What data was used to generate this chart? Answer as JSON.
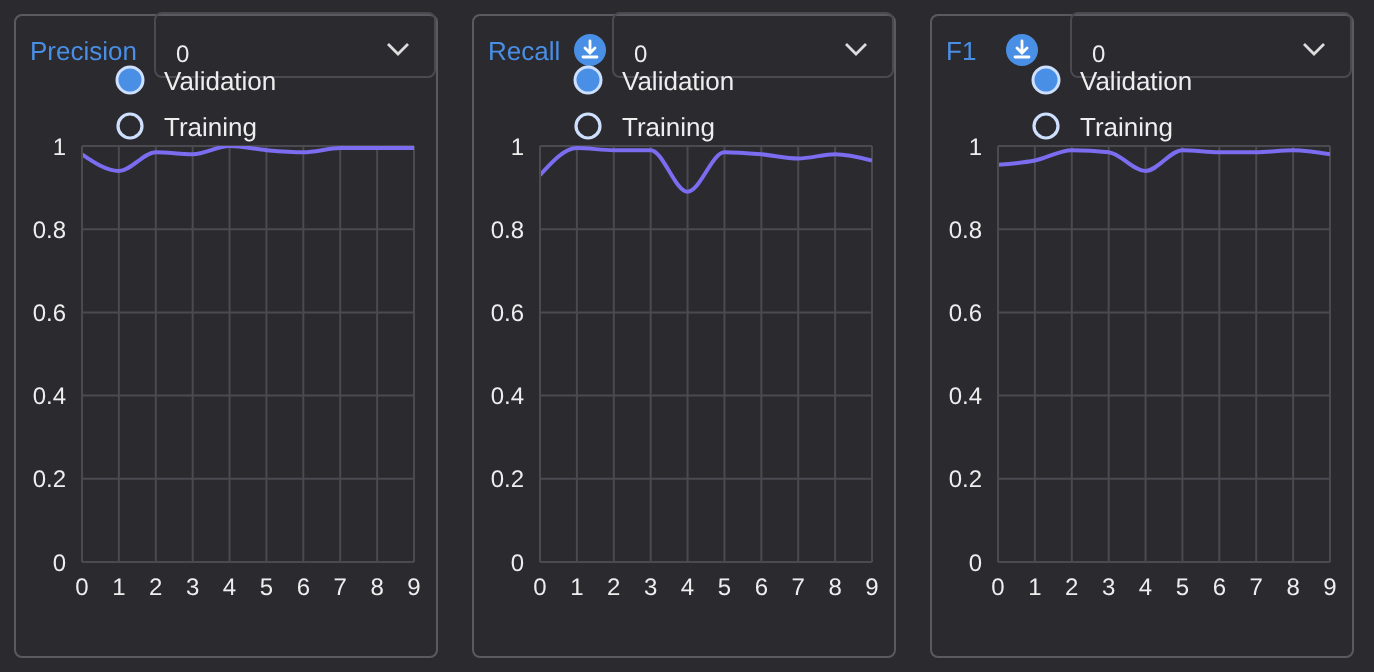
{
  "chart_data": [
    {
      "type": "line",
      "title": "Precision",
      "categories": [
        "0",
        "1",
        "2",
        "3",
        "4",
        "5",
        "6",
        "7",
        "8",
        "9"
      ],
      "series": [
        {
          "name": "Validation",
          "color": "#7b6cf0",
          "values": [
            0.98,
            0.94,
            0.985,
            0.98,
            1.0,
            0.99,
            0.985,
            0.995,
            0.995,
            0.995
          ]
        }
      ],
      "ylim": [
        0,
        1
      ],
      "yticks": [
        0,
        0.2,
        0.4,
        0.6,
        0.8,
        1
      ],
      "grid": true,
      "legend": "top",
      "marker": "none",
      "annotations": [
        "0",
        "Training"
      ]
    },
    {
      "type": "line",
      "title": "Recall",
      "categories": [
        "0",
        "1",
        "2",
        "3",
        "4",
        "5",
        "6",
        "7",
        "8",
        "9"
      ],
      "series": [
        {
          "name": "Validation",
          "color": "#7b6cf0",
          "values": [
            0.93,
            0.995,
            0.99,
            0.99,
            0.89,
            0.985,
            0.98,
            0.97,
            0.98,
            0.965
          ]
        }
      ],
      "ylim": [
        0,
        1
      ],
      "yticks": [
        0,
        0.2,
        0.4,
        0.6,
        0.8,
        1
      ],
      "grid": true,
      "legend": "top",
      "marker": "none",
      "annotations": [
        "0",
        "Training"
      ]
    },
    {
      "type": "line",
      "title": "F1",
      "categories": [
        "0",
        "1",
        "2",
        "3",
        "4",
        "5",
        "6",
        "7",
        "8",
        "9"
      ],
      "series": [
        {
          "name": "Validation",
          "color": "#7b6cf0",
          "values": [
            0.955,
            0.965,
            0.99,
            0.985,
            0.94,
            0.99,
            0.985,
            0.985,
            0.99,
            0.98
          ]
        }
      ],
      "ylim": [
        0,
        1
      ],
      "yticks": [
        0,
        0.2,
        0.4,
        0.6,
        0.8,
        1
      ],
      "grid": true,
      "legend": "top",
      "marker": "none",
      "annotations": [
        "0",
        "Training"
      ]
    }
  ]
}
